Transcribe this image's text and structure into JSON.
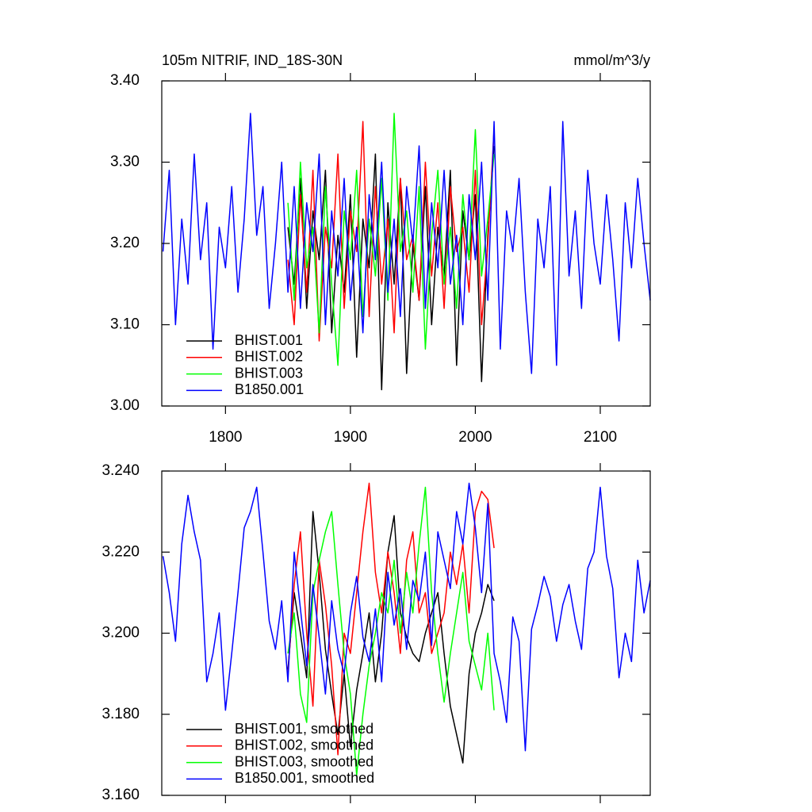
{
  "chart_data": [
    {
      "type": "line",
      "title": "105m NITRIF, IND_18S-30N",
      "units": "mmol/m^3/y",
      "xlim": [
        1749,
        2140
      ],
      "xticks": [
        1800,
        1900,
        2000,
        2100
      ],
      "ylim": [
        3.0,
        3.4
      ],
      "yticks": [
        {
          "value": 3.0,
          "label": "3.00"
        },
        {
          "value": 3.1,
          "label": "3.10"
        },
        {
          "value": 3.2,
          "label": "3.20"
        },
        {
          "value": 3.3,
          "label": "3.30"
        },
        {
          "value": 3.4,
          "label": "3.40"
        }
      ],
      "legend": "lower left",
      "series": [
        {
          "name": "BHIST.001",
          "color": "#000000",
          "x": [
            1850,
            1855,
            1860,
            1865,
            1870,
            1875,
            1880,
            1885,
            1890,
            1895,
            1900,
            1905,
            1910,
            1915,
            1920,
            1925,
            1930,
            1935,
            1940,
            1945,
            1950,
            1955,
            1960,
            1965,
            1970,
            1975,
            1980,
            1985,
            1990,
            1995,
            2000,
            2005,
            2010,
            2015
          ],
          "values": [
            3.22,
            3.15,
            3.28,
            3.12,
            3.24,
            3.18,
            3.29,
            3.09,
            3.21,
            3.14,
            3.26,
            3.06,
            3.23,
            3.17,
            3.31,
            3.02,
            3.25,
            3.15,
            3.28,
            3.04,
            3.2,
            3.13,
            3.27,
            3.1,
            3.22,
            3.16,
            3.29,
            3.05,
            3.24,
            3.18,
            3.26,
            3.03,
            3.21,
            3.32
          ]
        },
        {
          "name": "BHIST.002",
          "color": "#ff0000",
          "x": [
            1850,
            1855,
            1860,
            1865,
            1870,
            1875,
            1880,
            1885,
            1890,
            1895,
            1900,
            1905,
            1910,
            1915,
            1920,
            1925,
            1930,
            1935,
            1940,
            1945,
            1950,
            1955,
            1960,
            1965,
            1970,
            1975,
            1980,
            1985,
            1990,
            1995,
            2000,
            2005,
            2010,
            2015
          ],
          "values": [
            3.18,
            3.1,
            3.26,
            3.14,
            3.29,
            3.08,
            3.22,
            3.17,
            3.31,
            3.12,
            3.24,
            3.19,
            3.35,
            3.11,
            3.27,
            3.15,
            3.23,
            3.09,
            3.28,
            3.18,
            3.21,
            3.13,
            3.3,
            3.16,
            3.25,
            3.12,
            3.27,
            3.19,
            3.22,
            3.14,
            3.29,
            3.1,
            3.2,
            3.34
          ]
        },
        {
          "name": "BHIST.003",
          "color": "#00ff00",
          "x": [
            1850,
            1855,
            1860,
            1865,
            1870,
            1875,
            1880,
            1885,
            1890,
            1895,
            1900,
            1905,
            1910,
            1915,
            1920,
            1925,
            1930,
            1935,
            1940,
            1945,
            1950,
            1955,
            1960,
            1965,
            1970,
            1975,
            1980,
            1985,
            1990,
            1995,
            2000,
            2005,
            2010,
            2015
          ],
          "values": [
            3.25,
            3.13,
            3.3,
            3.17,
            3.22,
            3.09,
            3.27,
            3.15,
            3.05,
            3.24,
            3.18,
            3.29,
            3.11,
            3.23,
            3.16,
            3.28,
            3.13,
            3.36,
            3.19,
            3.24,
            3.14,
            3.27,
            3.07,
            3.21,
            3.29,
            3.15,
            3.22,
            3.12,
            3.26,
            3.18,
            3.34,
            3.16,
            3.23,
            3.31
          ]
        },
        {
          "name": "B1850.001",
          "color": "#0000ff",
          "x": [
            1750,
            1755,
            1760,
            1765,
            1770,
            1775,
            1780,
            1785,
            1790,
            1795,
            1800,
            1805,
            1810,
            1815,
            1820,
            1825,
            1830,
            1835,
            1840,
            1845,
            1850,
            1855,
            1860,
            1865,
            1870,
            1875,
            1880,
            1885,
            1890,
            1895,
            1900,
            1905,
            1910,
            1915,
            1920,
            1925,
            1930,
            1935,
            1940,
            1945,
            1950,
            1955,
            1960,
            1965,
            1970,
            1975,
            1980,
            1985,
            1990,
            1995,
            2000,
            2005,
            2010,
            2015,
            2020,
            2025,
            2030,
            2035,
            2040,
            2045,
            2050,
            2055,
            2060,
            2065,
            2070,
            2075,
            2080,
            2085,
            2090,
            2095,
            2100,
            2105,
            2110,
            2115,
            2120,
            2125,
            2130,
            2135,
            2140
          ],
          "values": [
            3.19,
            3.29,
            3.1,
            3.23,
            3.15,
            3.31,
            3.18,
            3.25,
            3.07,
            3.22,
            3.17,
            3.27,
            3.14,
            3.23,
            3.36,
            3.21,
            3.27,
            3.12,
            3.2,
            3.3,
            3.14,
            3.27,
            3.12,
            3.25,
            3.19,
            3.31,
            3.1,
            3.24,
            3.16,
            3.28,
            3.13,
            3.22,
            3.09,
            3.26,
            3.18,
            3.3,
            3.14,
            3.23,
            3.11,
            3.27,
            3.2,
            3.32,
            3.12,
            3.25,
            3.17,
            3.29,
            3.15,
            3.21,
            3.1,
            3.26,
            3.18,
            3.3,
            3.13,
            3.35,
            3.07,
            3.24,
            3.19,
            3.28,
            3.14,
            3.04,
            3.23,
            3.17,
            3.27,
            3.05,
            3.35,
            3.16,
            3.24,
            3.12,
            3.29,
            3.2,
            3.15,
            3.26,
            3.18,
            3.08,
            3.25,
            3.17,
            3.28,
            3.2,
            3.13
          ]
        }
      ]
    },
    {
      "type": "line",
      "xlim": [
        1749,
        2140
      ],
      "xticks": [
        1800,
        1900,
        2000,
        2100
      ],
      "ylim": [
        3.16,
        3.24
      ],
      "yticks": [
        {
          "value": 3.16,
          "label": "3.160"
        },
        {
          "value": 3.18,
          "label": "3.180"
        },
        {
          "value": 3.2,
          "label": "3.200"
        },
        {
          "value": 3.22,
          "label": "3.220"
        },
        {
          "value": 3.24,
          "label": "3.240"
        }
      ],
      "legend": "lower left",
      "series": [
        {
          "name": "BHIST.001, smoothed",
          "color": "#000000",
          "x": [
            1850,
            1855,
            1860,
            1865,
            1870,
            1875,
            1880,
            1885,
            1890,
            1895,
            1900,
            1905,
            1910,
            1915,
            1920,
            1925,
            1930,
            1935,
            1940,
            1945,
            1950,
            1955,
            1960,
            1965,
            1970,
            1975,
            1980,
            1985,
            1990,
            1995,
            2000,
            2005,
            2010,
            2015
          ],
          "values": [
            3.191,
            3.21,
            3.2,
            3.189,
            3.23,
            3.215,
            3.196,
            3.185,
            3.175,
            3.19,
            3.172,
            3.186,
            3.195,
            3.205,
            3.188,
            3.2,
            3.22,
            3.229,
            3.205,
            3.199,
            3.195,
            3.193,
            3.2,
            3.205,
            3.21,
            3.195,
            3.182,
            3.175,
            3.168,
            3.19,
            3.2,
            3.205,
            3.212,
            3.208
          ]
        },
        {
          "name": "BHIST.002, smoothed",
          "color": "#ff0000",
          "x": [
            1850,
            1855,
            1860,
            1865,
            1870,
            1875,
            1880,
            1885,
            1890,
            1895,
            1900,
            1905,
            1910,
            1915,
            1920,
            1925,
            1930,
            1935,
            1940,
            1945,
            1950,
            1955,
            1960,
            1965,
            1970,
            1975,
            1980,
            1985,
            1990,
            1995,
            2000,
            2005,
            2010,
            2015
          ],
          "values": [
            3.19,
            3.212,
            3.225,
            3.2,
            3.182,
            3.218,
            3.207,
            3.192,
            3.17,
            3.2,
            3.195,
            3.21,
            3.225,
            3.237,
            3.215,
            3.205,
            3.22,
            3.21,
            3.195,
            3.218,
            3.225,
            3.205,
            3.21,
            3.195,
            3.2,
            3.205,
            3.22,
            3.212,
            3.222,
            3.205,
            3.23,
            3.235,
            3.233,
            3.221
          ]
        },
        {
          "name": "BHIST.003, smoothed",
          "color": "#00ff00",
          "x": [
            1850,
            1855,
            1860,
            1865,
            1870,
            1875,
            1880,
            1885,
            1890,
            1895,
            1900,
            1905,
            1910,
            1915,
            1920,
            1925,
            1930,
            1935,
            1940,
            1945,
            1950,
            1955,
            1960,
            1965,
            1970,
            1975,
            1980,
            1985,
            1990,
            1995,
            2000,
            2005,
            2010,
            2015
          ],
          "values": [
            3.195,
            3.205,
            3.185,
            3.178,
            3.21,
            3.218,
            3.225,
            3.23,
            3.212,
            3.195,
            3.185,
            3.165,
            3.18,
            3.192,
            3.2,
            3.21,
            3.205,
            3.218,
            3.2,
            3.215,
            3.205,
            3.222,
            3.236,
            3.21,
            3.195,
            3.183,
            3.195,
            3.205,
            3.215,
            3.198,
            3.192,
            3.186,
            3.2,
            3.181
          ]
        },
        {
          "name": "B1850.001, smoothed",
          "color": "#0000ff",
          "x": [
            1750,
            1755,
            1760,
            1765,
            1770,
            1775,
            1780,
            1785,
            1790,
            1795,
            1800,
            1805,
            1810,
            1815,
            1820,
            1825,
            1830,
            1835,
            1840,
            1845,
            1850,
            1855,
            1860,
            1865,
            1870,
            1875,
            1880,
            1885,
            1890,
            1895,
            1900,
            1905,
            1910,
            1915,
            1920,
            1925,
            1930,
            1935,
            1940,
            1945,
            1950,
            1955,
            1960,
            1965,
            1970,
            1975,
            1980,
            1985,
            1990,
            1995,
            2000,
            2005,
            2010,
            2015,
            2020,
            2025,
            2030,
            2035,
            2040,
            2045,
            2050,
            2055,
            2060,
            2065,
            2070,
            2075,
            2080,
            2085,
            2090,
            2095,
            2100,
            2105,
            2110,
            2115,
            2120,
            2125,
            2130,
            2135,
            2140
          ],
          "values": [
            3.219,
            3.21,
            3.198,
            3.222,
            3.234,
            3.225,
            3.218,
            3.188,
            3.195,
            3.205,
            3.181,
            3.195,
            3.21,
            3.226,
            3.23,
            3.236,
            3.22,
            3.203,
            3.196,
            3.208,
            3.188,
            3.22,
            3.206,
            3.192,
            3.212,
            3.199,
            3.185,
            3.208,
            3.196,
            3.19,
            3.205,
            3.214,
            3.199,
            3.193,
            3.206,
            3.188,
            3.215,
            3.202,
            3.211,
            3.196,
            3.213,
            3.208,
            3.22,
            3.197,
            3.225,
            3.218,
            3.211,
            3.23,
            3.222,
            3.237,
            3.226,
            3.21,
            3.232,
            3.195,
            3.188,
            3.178,
            3.204,
            3.198,
            3.171,
            3.201,
            3.207,
            3.214,
            3.209,
            3.198,
            3.207,
            3.212,
            3.203,
            3.196,
            3.216,
            3.22,
            3.236,
            3.219,
            3.211,
            3.189,
            3.2,
            3.193,
            3.218,
            3.205,
            3.213
          ]
        }
      ]
    }
  ]
}
